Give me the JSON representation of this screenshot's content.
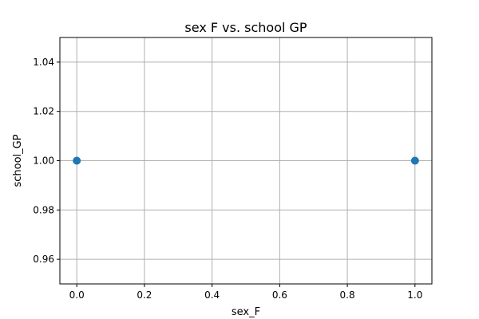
{
  "chart_data": {
    "type": "scatter",
    "title": "sex F vs. school GP",
    "xlabel": "sex_F",
    "ylabel": "school_GP",
    "xlim": [
      -0.05,
      1.05
    ],
    "ylim": [
      0.95,
      1.05
    ],
    "xticks": [
      0.0,
      0.2,
      0.4,
      0.6,
      0.8,
      1.0
    ],
    "xtick_labels": [
      "0.0",
      "0.2",
      "0.4",
      "0.6",
      "0.8",
      "1.0"
    ],
    "yticks": [
      0.96,
      0.98,
      1.0,
      1.02,
      1.04
    ],
    "ytick_labels": [
      "0.96",
      "0.98",
      "1.00",
      "1.02",
      "1.04"
    ],
    "grid": true,
    "series": [
      {
        "points": [
          {
            "x": 0.0,
            "y": 1.0
          },
          {
            "x": 1.0,
            "y": 1.0
          }
        ],
        "color": "#1f77b4"
      }
    ]
  }
}
